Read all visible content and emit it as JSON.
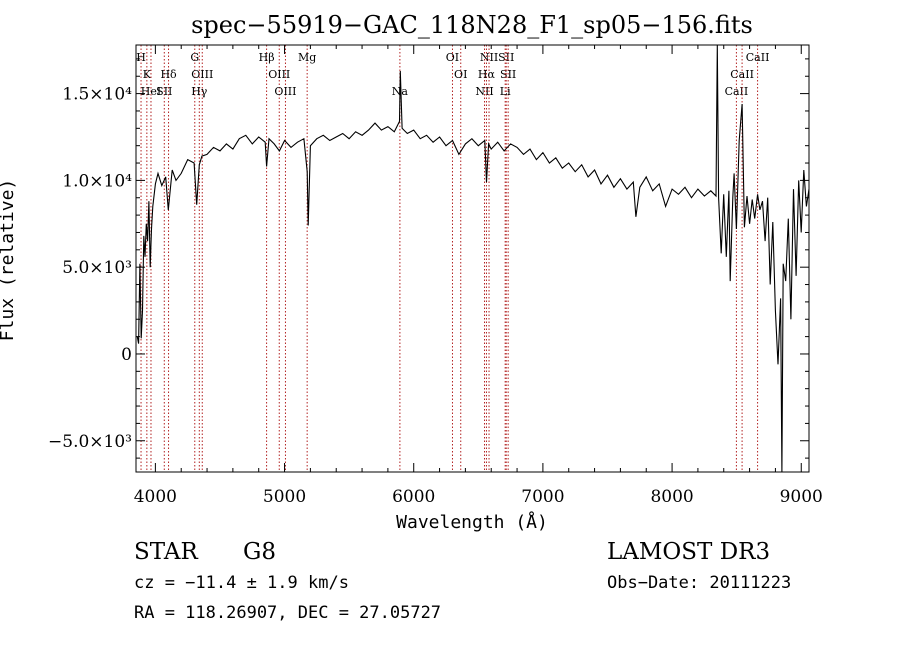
{
  "chart_data": {
    "type": "line",
    "title": "spec−55919−GAC_118N28_F1_sp05−156.fits",
    "xlabel": "Wavelength (Å)",
    "ylabel": "Flux (relative)",
    "xlim": [
      3850,
      9060
    ],
    "ylim": [
      -6800,
      17800
    ],
    "x_ticks": [
      4000,
      5000,
      6000,
      7000,
      8000,
      9000
    ],
    "x_tick_labels": [
      "4000",
      "5000",
      "6000",
      "7000",
      "8000",
      "9000"
    ],
    "y_ticks": [
      -5000,
      0,
      5000,
      10000,
      15000
    ],
    "y_tick_labels": [
      "−5.0×10³",
      "0",
      "5.0×10³",
      "1.0×10⁴",
      "1.5×10⁴"
    ],
    "series": [
      {
        "name": "spectrum",
        "color": "#000000",
        "x": [
          3860,
          3870,
          3880,
          3890,
          3900,
          3910,
          3920,
          3930,
          3940,
          3950,
          3960,
          3970,
          3980,
          4000,
          4020,
          4050,
          4080,
          4100,
          4130,
          4160,
          4200,
          4250,
          4300,
          4320,
          4340,
          4360,
          4400,
          4450,
          4500,
          4550,
          4600,
          4650,
          4700,
          4750,
          4800,
          4850,
          4861,
          4880,
          4920,
          4960,
          5000,
          5050,
          5100,
          5150,
          5175,
          5183,
          5200,
          5250,
          5300,
          5350,
          5400,
          5450,
          5500,
          5550,
          5600,
          5650,
          5700,
          5750,
          5800,
          5850,
          5890,
          5896,
          5910,
          5950,
          6000,
          6050,
          6100,
          6150,
          6200,
          6250,
          6300,
          6350,
          6400,
          6450,
          6500,
          6550,
          6563,
          6580,
          6600,
          6650,
          6700,
          6750,
          6800,
          6850,
          6900,
          6950,
          7000,
          7050,
          7100,
          7150,
          7200,
          7250,
          7300,
          7350,
          7400,
          7450,
          7500,
          7550,
          7600,
          7650,
          7700,
          7720,
          7750,
          7800,
          7850,
          7900,
          7950,
          8000,
          8050,
          8100,
          8150,
          8200,
          8250,
          8300,
          8340,
          8350,
          8360,
          8380,
          8400,
          8420,
          8440,
          8450,
          8470,
          8480,
          8498,
          8520,
          8542,
          8560,
          8580,
          8600,
          8620,
          8640,
          8662,
          8680,
          8700,
          8720,
          8740,
          8760,
          8780,
          8800,
          8820,
          8840,
          8850,
          8860,
          8880,
          8900,
          8920,
          8940,
          8960,
          8980,
          9000,
          9020,
          9040,
          9060
        ],
        "y": [
          1000,
          600,
          5200,
          900,
          2500,
          6800,
          5600,
          7500,
          6500,
          8800,
          5000,
          7200,
          8500,
          9800,
          10400,
          9700,
          10200,
          8300,
          10600,
          10000,
          10400,
          11200,
          11000,
          8600,
          10900,
          11400,
          11500,
          11900,
          11700,
          12100,
          11800,
          12400,
          12600,
          12100,
          12500,
          12200,
          10800,
          12400,
          12100,
          11700,
          12300,
          11900,
          12200,
          12400,
          10500,
          7400,
          12000,
          12400,
          12600,
          12300,
          12500,
          12700,
          12400,
          12800,
          12600,
          12900,
          13300,
          12900,
          13100,
          12800,
          13400,
          16300,
          13000,
          12700,
          12900,
          12400,
          12600,
          12200,
          12500,
          12000,
          12300,
          11500,
          12100,
          12400,
          12000,
          12300,
          9900,
          12100,
          11800,
          12200,
          11700,
          12100,
          11900,
          11500,
          11800,
          11200,
          11600,
          11000,
          11300,
          10700,
          11000,
          10500,
          10900,
          10200,
          10600,
          9800,
          10300,
          9600,
          10100,
          9500,
          9900,
          7900,
          9600,
          10200,
          9400,
          9800,
          8500,
          9500,
          9200,
          9600,
          9000,
          9500,
          9100,
          9400,
          9100,
          17900,
          9000,
          5800,
          9200,
          5600,
          9400,
          4200,
          9000,
          10400,
          7200,
          12300,
          14400,
          7300,
          9100,
          7500,
          8900,
          7800,
          9200,
          8300,
          8800,
          6500,
          9000,
          4000,
          7600,
          2500,
          -600,
          3200,
          -6800,
          5200,
          4200,
          7800,
          2000,
          9500,
          4500,
          10000,
          7000,
          10600,
          8500,
          9500
        ]
      }
    ],
    "line_markers": [
      {
        "name": "H",
        "wavelength": 3889,
        "row": 1
      },
      {
        "name": "K",
        "wavelength": 3934,
        "row": 2
      },
      {
        "name": "HeI",
        "wavelength": 3966,
        "row": 3
      },
      {
        "name": "SII",
        "wavelength": 4069,
        "row": 3
      },
      {
        "name": "Hδ",
        "wavelength": 4102,
        "row": 2
      },
      {
        "name": "G",
        "wavelength": 4305,
        "row": 1
      },
      {
        "name": "OIII",
        "wavelength": 4363,
        "row": 2
      },
      {
        "name": "Hγ",
        "wavelength": 4340,
        "row": 3
      },
      {
        "name": "Hβ",
        "wavelength": 4861,
        "row": 1
      },
      {
        "name": "OIII",
        "wavelength": 4959,
        "row": 2
      },
      {
        "name": "OIII",
        "wavelength": 5007,
        "row": 3
      },
      {
        "name": "Mg",
        "wavelength": 5175,
        "row": 1
      },
      {
        "name": "Na",
        "wavelength": 5893,
        "row": 3
      },
      {
        "name": "OI",
        "wavelength": 6300,
        "row": 1
      },
      {
        "name": "OI",
        "wavelength": 6364,
        "row": 2
      },
      {
        "name": "NII",
        "wavelength": 6548,
        "row": 3
      },
      {
        "name": "NII",
        "wavelength": 6583,
        "row": 1
      },
      {
        "name": "Hα",
        "wavelength": 6563,
        "row": 2
      },
      {
        "name": "SII",
        "wavelength": 6716,
        "row": 1
      },
      {
        "name": "SII",
        "wavelength": 6731,
        "row": 2
      },
      {
        "name": "Li",
        "wavelength": 6708,
        "row": 3
      },
      {
        "name": "CaII",
        "wavelength": 8498,
        "row": 3
      },
      {
        "name": "CaII",
        "wavelength": 8542,
        "row": 2
      },
      {
        "name": "CaII",
        "wavelength": 8662,
        "row": 1
      }
    ],
    "marker_color": "#b22222"
  },
  "info": {
    "object_class": "STAR",
    "subclass": "G8",
    "survey": "LAMOST DR3",
    "redshift_line": "cz = −11.4 ± 1.9 km/s",
    "obs_date": "Obs−Date: 20111223",
    "coords": "RA = 118.26907, DEC =  27.05727"
  }
}
